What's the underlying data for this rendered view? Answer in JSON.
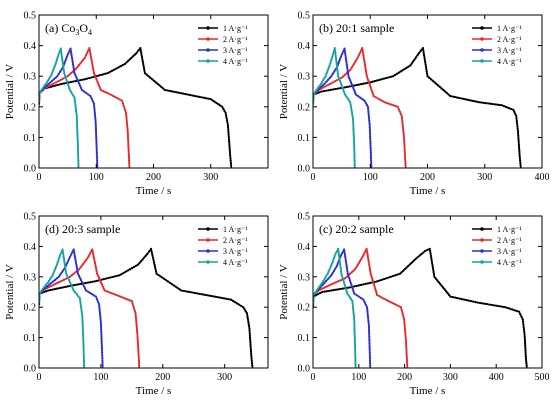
{
  "colors": {
    "1": "#000000",
    "2": "#e8292b",
    "3": "#2b2fd0",
    "4": "#14a3a0"
  },
  "chart_data": [
    {
      "type": "line",
      "panel_label": "(a) Co",
      "panel_sub": "3",
      "panel_mid": "O",
      "panel_sub2": "4",
      "xlabel": "Time / s",
      "ylabel": "Potential / V",
      "xlim": [
        0,
        400
      ],
      "ylim": [
        0,
        0.5
      ],
      "xticks": [
        "0",
        "100",
        "200",
        "300"
      ],
      "xtick_values": [
        0,
        100,
        200,
        300
      ],
      "yticks": [
        "0.0",
        "0.1",
        "0.2",
        "0.3",
        "0.4",
        "0.5"
      ],
      "ytick_values": [
        0,
        0.1,
        0.2,
        0.3,
        0.4,
        0.5
      ],
      "legend": [
        "1 A·g⁻¹",
        "2 A·g⁻¹",
        "3 A·g⁻¹",
        "4 A·g⁻¹"
      ],
      "series": [
        {
          "name": "1 A·g⁻¹",
          "color_key": "1",
          "x": [
            0,
            1,
            10,
            40,
            80,
            120,
            150,
            170,
            177,
            185,
            220,
            260,
            300,
            320,
            326,
            330,
            334,
            336
          ],
          "y": [
            0.21,
            0.245,
            0.26,
            0.275,
            0.29,
            0.31,
            0.34,
            0.375,
            0.392,
            0.31,
            0.255,
            0.24,
            0.225,
            0.2,
            0.18,
            0.14,
            0.04,
            0.0
          ]
        },
        {
          "name": "2 A·g⁻¹",
          "color_key": "2",
          "x": [
            0,
            1,
            10,
            30,
            50,
            65,
            80,
            88,
            96,
            108,
            125,
            145,
            152,
            155,
            157,
            158
          ],
          "y": [
            0.215,
            0.245,
            0.26,
            0.28,
            0.3,
            0.325,
            0.36,
            0.392,
            0.31,
            0.255,
            0.24,
            0.22,
            0.18,
            0.12,
            0.04,
            0.0
          ]
        },
        {
          "name": "3 A·g⁻¹",
          "color_key": "3",
          "x": [
            0,
            1,
            8,
            20,
            32,
            42,
            49,
            55,
            62,
            75,
            90,
            96,
            99,
            101,
            102
          ],
          "y": [
            0.215,
            0.245,
            0.26,
            0.28,
            0.3,
            0.33,
            0.365,
            0.39,
            0.31,
            0.255,
            0.235,
            0.21,
            0.15,
            0.05,
            0.0
          ]
        },
        {
          "name": "4 A·g⁻¹",
          "color_key": "4",
          "x": [
            0,
            1,
            6,
            14,
            22,
            29,
            34,
            38,
            44,
            54,
            62,
            66,
            68,
            69
          ],
          "y": [
            0.215,
            0.245,
            0.26,
            0.28,
            0.305,
            0.34,
            0.37,
            0.39,
            0.31,
            0.255,
            0.23,
            0.17,
            0.07,
            0.0
          ]
        }
      ]
    },
    {
      "type": "line",
      "panel_label": "(b) 20:1 sample",
      "xlabel": "Time / s",
      "ylabel": "Potential / V",
      "xlim": [
        0,
        400
      ],
      "ylim": [
        0,
        0.5
      ],
      "xticks": [
        "0",
        "100",
        "200",
        "300",
        "400"
      ],
      "xtick_values": [
        0,
        100,
        200,
        300,
        400
      ],
      "yticks": [
        "0.0",
        "0.1",
        "0.2",
        "0.3",
        "0.4",
        "0.5"
      ],
      "ytick_values": [
        0,
        0.1,
        0.2,
        0.3,
        0.4,
        0.5
      ],
      "legend": [
        "1 A·g⁻¹",
        "2 A·g⁻¹",
        "3 A·g⁻¹",
        "4 A·g⁻¹"
      ],
      "series": [
        {
          "name": "1 A·g⁻¹",
          "color_key": "1",
          "x": [
            0,
            1,
            15,
            60,
            100,
            140,
            170,
            185,
            192,
            200,
            240,
            290,
            330,
            350,
            355,
            358,
            361,
            363
          ],
          "y": [
            0.21,
            0.24,
            0.25,
            0.265,
            0.28,
            0.3,
            0.335,
            0.375,
            0.392,
            0.3,
            0.235,
            0.215,
            0.205,
            0.19,
            0.17,
            0.12,
            0.04,
            0.0
          ]
        },
        {
          "name": "2 A·g⁻¹",
          "color_key": "2",
          "x": [
            0,
            1,
            10,
            30,
            50,
            65,
            78,
            86,
            94,
            106,
            125,
            148,
            155,
            159,
            161,
            162
          ],
          "y": [
            0.21,
            0.24,
            0.255,
            0.275,
            0.295,
            0.32,
            0.36,
            0.392,
            0.3,
            0.235,
            0.215,
            0.2,
            0.17,
            0.1,
            0.03,
            0.0
          ]
        },
        {
          "name": "3 A·g⁻¹",
          "color_key": "3",
          "x": [
            0,
            1,
            8,
            20,
            32,
            42,
            49,
            55,
            62,
            75,
            90,
            96,
            99,
            101,
            102
          ],
          "y": [
            0.21,
            0.24,
            0.255,
            0.275,
            0.3,
            0.33,
            0.365,
            0.39,
            0.3,
            0.24,
            0.22,
            0.2,
            0.14,
            0.05,
            0.0
          ]
        },
        {
          "name": "4 A·g⁻¹",
          "color_key": "4",
          "x": [
            0,
            1,
            6,
            14,
            22,
            29,
            34,
            38,
            44,
            56,
            65,
            70,
            72,
            73
          ],
          "y": [
            0.21,
            0.24,
            0.255,
            0.275,
            0.3,
            0.335,
            0.365,
            0.392,
            0.3,
            0.24,
            0.215,
            0.16,
            0.07,
            0.0
          ]
        }
      ]
    },
    {
      "type": "line",
      "panel_label": "(d) 20:3 sample",
      "xlabel": "Time / s",
      "ylabel": "Potential / V",
      "xlim": [
        0,
        370
      ],
      "ylim": [
        0,
        0.5
      ],
      "xticks": [
        "0",
        "100",
        "200",
        "300"
      ],
      "xtick_values": [
        0,
        100,
        200,
        300
      ],
      "yticks": [
        "0.0",
        "0.1",
        "0.2",
        "0.3",
        "0.4",
        "0.5"
      ],
      "ytick_values": [
        0,
        0.1,
        0.2,
        0.3,
        0.4,
        0.5
      ],
      "legend": [
        "1 A·g⁻¹",
        "2 A·g⁻¹",
        "3 A·g⁻¹",
        "4 A·g⁻¹"
      ],
      "series": [
        {
          "name": "1 A·g⁻¹",
          "color_key": "1",
          "x": [
            0,
            1,
            15,
            50,
            90,
            130,
            160,
            175,
            181,
            190,
            230,
            270,
            310,
            330,
            336,
            340,
            343,
            345
          ],
          "y": [
            0.21,
            0.245,
            0.255,
            0.27,
            0.285,
            0.305,
            0.34,
            0.375,
            0.392,
            0.31,
            0.255,
            0.24,
            0.225,
            0.2,
            0.18,
            0.13,
            0.04,
            0.0
          ]
        },
        {
          "name": "2 A·g⁻¹",
          "color_key": "2",
          "x": [
            0,
            1,
            10,
            30,
            50,
            65,
            78,
            86,
            94,
            106,
            125,
            150,
            156,
            159,
            161,
            162
          ],
          "y": [
            0.215,
            0.245,
            0.26,
            0.28,
            0.3,
            0.325,
            0.36,
            0.39,
            0.31,
            0.255,
            0.24,
            0.22,
            0.18,
            0.11,
            0.04,
            0.0
          ]
        },
        {
          "name": "3 A·g⁻¹",
          "color_key": "3",
          "x": [
            0,
            1,
            8,
            20,
            32,
            42,
            50,
            56,
            63,
            76,
            92,
            97,
            100,
            102,
            103
          ],
          "y": [
            0.215,
            0.245,
            0.26,
            0.28,
            0.3,
            0.33,
            0.365,
            0.39,
            0.31,
            0.255,
            0.235,
            0.21,
            0.15,
            0.05,
            0.0
          ]
        },
        {
          "name": "4 A·g⁻¹",
          "color_key": "4",
          "x": [
            0,
            1,
            6,
            14,
            22,
            29,
            34,
            38,
            44,
            56,
            66,
            70,
            72,
            73
          ],
          "y": [
            0.215,
            0.245,
            0.26,
            0.28,
            0.305,
            0.34,
            0.37,
            0.39,
            0.31,
            0.255,
            0.23,
            0.17,
            0.07,
            0.0
          ]
        }
      ]
    },
    {
      "type": "line",
      "panel_label": "(c) 20:2 sample",
      "xlabel": "Time / s",
      "ylabel": "Potential / V",
      "xlim": [
        0,
        500
      ],
      "ylim": [
        0,
        0.5
      ],
      "xticks": [
        "0",
        "100",
        "200",
        "300",
        "400",
        "500"
      ],
      "xtick_values": [
        0,
        100,
        200,
        300,
        400,
        500
      ],
      "yticks": [
        "0.0",
        "0.1",
        "0.2",
        "0.3",
        "0.4",
        "0.5"
      ],
      "ytick_values": [
        0,
        0.1,
        0.2,
        0.3,
        0.4,
        0.5
      ],
      "legend": [
        "1 A·g⁻¹",
        "2 A·g⁻¹",
        "3 A·g⁻¹",
        "4 A·g⁻¹"
      ],
      "series": [
        {
          "name": "1 A·g⁻¹",
          "color_key": "1",
          "x": [
            0,
            1,
            20,
            80,
            140,
            190,
            225,
            245,
            255,
            265,
            300,
            360,
            420,
            450,
            458,
            462,
            465,
            467
          ],
          "y": [
            0.2,
            0.235,
            0.25,
            0.265,
            0.285,
            0.31,
            0.36,
            0.385,
            0.392,
            0.3,
            0.235,
            0.215,
            0.2,
            0.185,
            0.16,
            0.11,
            0.03,
            0.0
          ]
        },
        {
          "name": "2 A·g⁻¹",
          "color_key": "2",
          "x": [
            0,
            1,
            12,
            40,
            70,
            92,
            108,
            117,
            126,
            140,
            165,
            192,
            199,
            203,
            205,
            206
          ],
          "y": [
            0.205,
            0.24,
            0.255,
            0.275,
            0.295,
            0.325,
            0.365,
            0.392,
            0.31,
            0.24,
            0.22,
            0.2,
            0.16,
            0.09,
            0.03,
            0.0
          ]
        },
        {
          "name": "3 A·g⁻¹",
          "color_key": "3",
          "x": [
            0,
            1,
            10,
            25,
            40,
            52,
            61,
            68,
            76,
            90,
            110,
            118,
            122,
            124,
            125
          ],
          "y": [
            0.21,
            0.24,
            0.255,
            0.28,
            0.305,
            0.335,
            0.37,
            0.39,
            0.31,
            0.245,
            0.225,
            0.2,
            0.14,
            0.05,
            0.0
          ]
        },
        {
          "name": "4 A·g⁻¹",
          "color_key": "4",
          "x": [
            0,
            1,
            8,
            20,
            32,
            42,
            49,
            55,
            62,
            75,
            86,
            90,
            92,
            93
          ],
          "y": [
            0.21,
            0.24,
            0.255,
            0.28,
            0.31,
            0.345,
            0.375,
            0.392,
            0.31,
            0.245,
            0.22,
            0.16,
            0.06,
            0.0
          ]
        }
      ]
    }
  ]
}
